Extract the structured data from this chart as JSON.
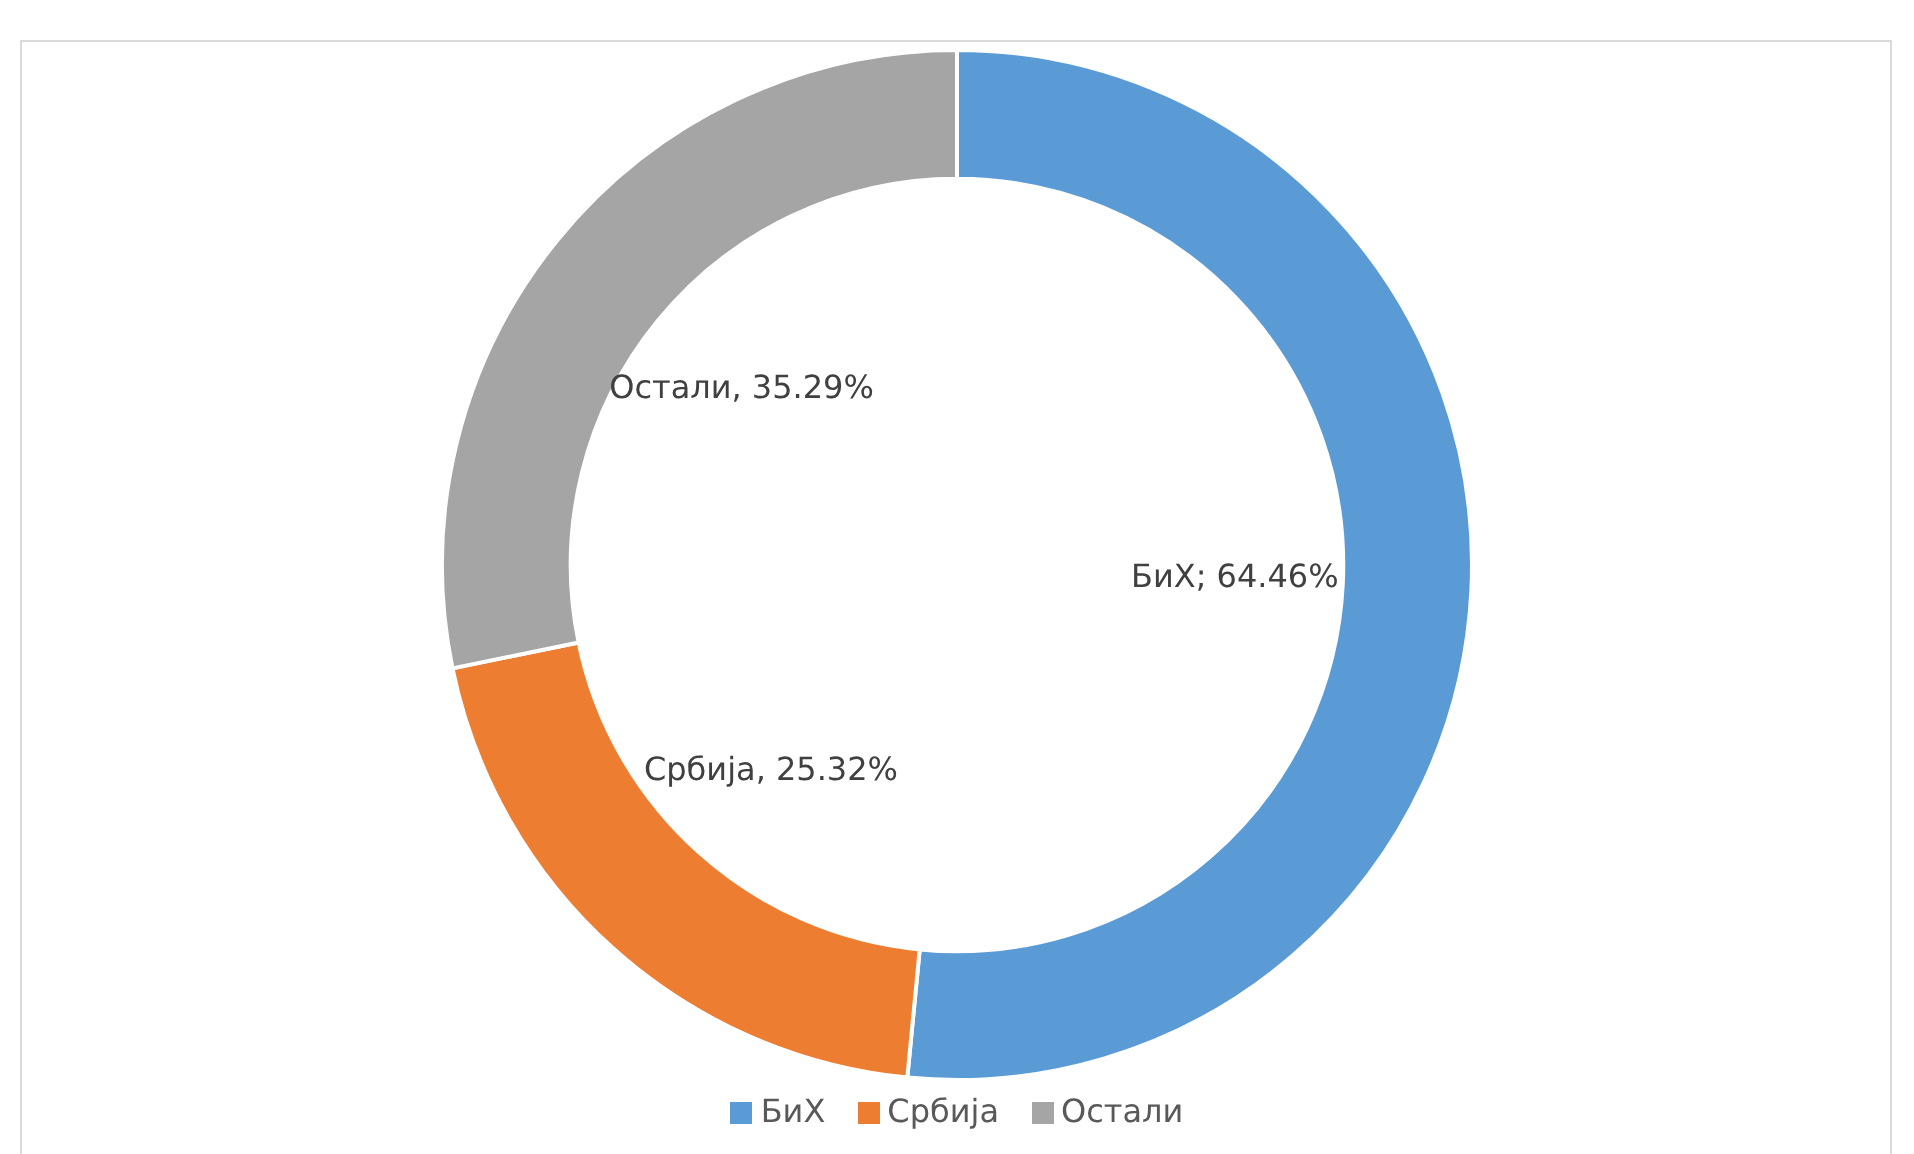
{
  "chart_data": {
    "type": "donut",
    "categories": [
      "БиХ",
      "Србија",
      "Остали"
    ],
    "values": [
      64.46,
      25.32,
      35.29
    ],
    "colors": [
      "#5b9bd5",
      "#ed7d31",
      "#a5a5a5"
    ],
    "value_labels": [
      "БиХ; 64.46%",
      "Србија, 25.32%",
      "Остали, 35.29%"
    ],
    "legend": "bottom"
  }
}
